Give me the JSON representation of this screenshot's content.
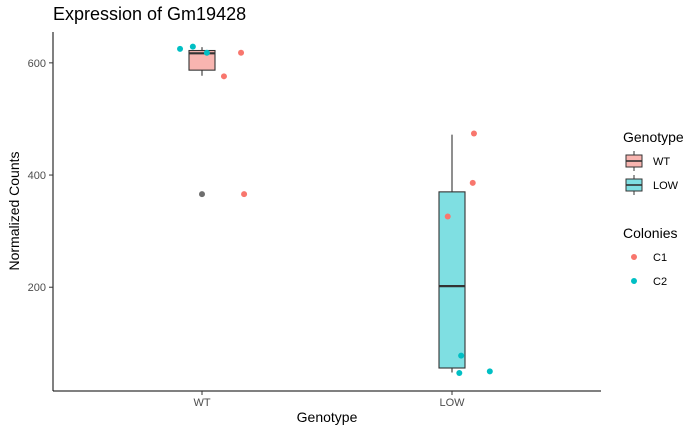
{
  "chart_data": {
    "type": "box",
    "title": "Expression of Gm19428",
    "xlabel": "Genotype",
    "ylabel": "Normalized Counts",
    "categories": [
      "WT",
      "LOW"
    ],
    "ylim": [
      15,
      655
    ],
    "yticks": [
      200,
      400,
      600
    ],
    "grid": false,
    "fill_legend": {
      "title": "Genotype",
      "placement": "right",
      "items": [
        {
          "label": "WT",
          "color": "#f8b5b0"
        },
        {
          "label": "LOW",
          "color": "#7fdfe2"
        }
      ]
    },
    "color_legend": {
      "title": "Colonies",
      "placement": "right",
      "items": [
        {
          "label": "C1",
          "color": "#f8766d"
        },
        {
          "label": "C2",
          "color": "#00bfc4"
        }
      ]
    },
    "boxes": [
      {
        "category": "WT",
        "min": 577,
        "q1": 587,
        "median": 617,
        "q3": 622,
        "max": 628,
        "fill": "#f8b5b0",
        "outliers": [
          366
        ]
      },
      {
        "category": "LOW",
        "min": 48,
        "q1": 56,
        "median": 202,
        "q3": 370,
        "max": 472,
        "fill": "#7fdfe2",
        "outliers": []
      }
    ],
    "points": [
      {
        "category": "WT",
        "jitter": -0.36,
        "y": 625,
        "colony": "C2"
      },
      {
        "category": "WT",
        "jitter": -0.15,
        "y": 629,
        "colony": "C2"
      },
      {
        "category": "WT",
        "jitter": 0.08,
        "y": 618,
        "colony": "C2"
      },
      {
        "category": "WT",
        "jitter": 0.64,
        "y": 618,
        "colony": "C1"
      },
      {
        "category": "WT",
        "jitter": 0.36,
        "y": 576,
        "colony": "C1"
      },
      {
        "category": "WT",
        "jitter": 0.69,
        "y": 366,
        "colony": "C1"
      },
      {
        "category": "LOW",
        "jitter": 0.36,
        "y": 474,
        "colony": "C1"
      },
      {
        "category": "LOW",
        "jitter": 0.34,
        "y": 386,
        "colony": "C1"
      },
      {
        "category": "LOW",
        "jitter": -0.07,
        "y": 326,
        "colony": "C1"
      },
      {
        "category": "LOW",
        "jitter": 0.15,
        "y": 78,
        "colony": "C2"
      },
      {
        "category": "LOW",
        "jitter": 0.12,
        "y": 47,
        "colony": "C2"
      },
      {
        "category": "LOW",
        "jitter": 0.62,
        "y": 50,
        "colony": "C2"
      }
    ]
  }
}
